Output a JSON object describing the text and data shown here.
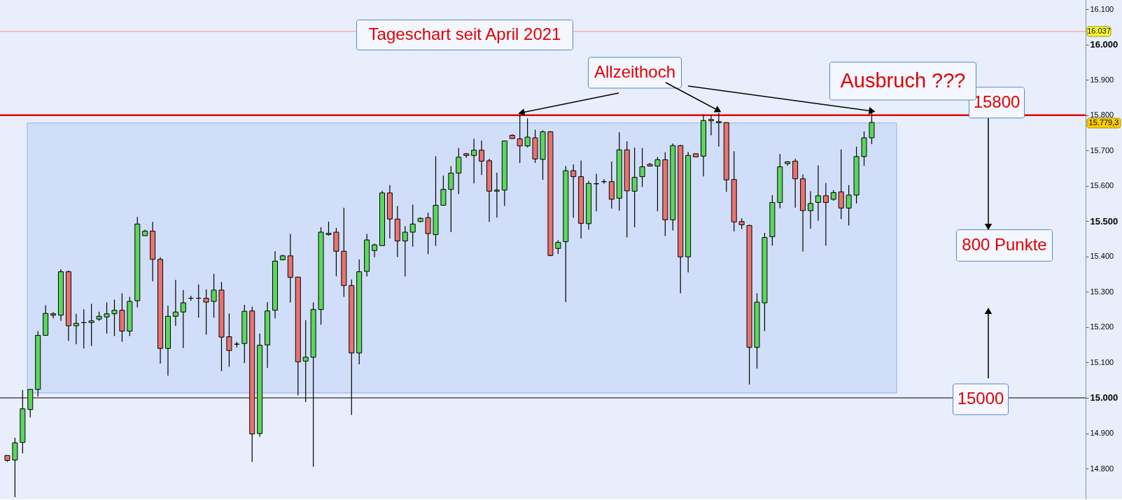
{
  "chart_data": {
    "type": "candlestick",
    "title": "Tageschart seit April 2021",
    "categories": [
      null,
      null,
      null,
      null,
      null,
      null,
      null,
      null,
      null,
      null,
      null,
      null,
      null,
      null,
      null,
      null,
      null,
      null,
      null,
      null,
      null,
      null,
      null,
      null,
      null,
      null,
      null,
      null,
      null,
      null,
      null,
      null,
      null,
      null,
      null,
      null,
      null,
      null,
      null,
      null,
      null,
      null,
      null,
      null,
      null,
      null,
      null,
      null,
      null,
      null,
      null,
      null,
      null,
      null,
      null,
      null,
      null,
      null,
      null,
      null,
      null,
      null,
      null,
      null,
      null,
      null,
      null,
      null,
      null,
      null,
      null,
      null,
      null,
      null,
      null,
      null,
      null,
      null,
      null,
      null,
      null,
      null,
      null,
      null,
      null,
      null,
      null,
      null,
      null,
      null,
      null,
      null,
      null,
      null,
      null,
      null,
      null,
      null,
      null,
      null,
      null,
      null,
      null,
      null,
      null,
      null,
      null,
      null,
      null,
      null,
      null,
      null,
      null,
      null,
      null,
      null,
      null,
      null,
      null,
      null,
      null,
      null,
      null,
      null,
      null,
      null,
      null,
      null,
      null,
      null,
      null,
      null,
      null,
      null,
      null,
      null,
      null,
      null,
      null,
      null,
      null
    ],
    "ohlc": [
      [
        14837,
        14838,
        14819,
        14823
      ],
      [
        14824,
        14887,
        14719,
        14873
      ],
      [
        14874,
        15022,
        14843,
        14969
      ],
      [
        14967,
        15024,
        14945,
        15024
      ],
      [
        15024,
        15189,
        15004,
        15177
      ],
      [
        15177,
        15262,
        15177,
        15239
      ],
      [
        15238,
        15243,
        15225,
        15234
      ],
      [
        15234,
        15364,
        15218,
        15357
      ],
      [
        15357,
        15360,
        15161,
        15204
      ],
      [
        15204,
        15238,
        15152,
        15211
      ],
      [
        15213,
        15251,
        15140,
        15213
      ],
      [
        15213,
        15266,
        15147,
        15218
      ],
      [
        15223,
        15244,
        15218,
        15231
      ],
      [
        15229,
        15270,
        15182,
        15238
      ],
      [
        15238,
        15278,
        15175,
        15248
      ],
      [
        15248,
        15296,
        15159,
        15189
      ],
      [
        15189,
        15286,
        15175,
        15273
      ],
      [
        15275,
        15512,
        15256,
        15492
      ],
      [
        15459,
        15476,
        15459,
        15472
      ],
      [
        15472,
        15498,
        15330,
        15392
      ],
      [
        15392,
        15398,
        15097,
        15140
      ],
      [
        15140,
        15261,
        15063,
        15231
      ],
      [
        15231,
        15334,
        15204,
        15243
      ],
      [
        15243,
        15305,
        15141,
        15269
      ],
      [
        15282,
        15289,
        15275,
        15282
      ],
      [
        15282,
        15321,
        15227,
        15282
      ],
      [
        15282,
        15307,
        15179,
        15271
      ],
      [
        15273,
        15351,
        15227,
        15305
      ],
      [
        15305,
        15328,
        15076,
        15172
      ],
      [
        15173,
        15239,
        15088,
        15134
      ],
      [
        15152,
        15159,
        15143,
        15152
      ],
      [
        15154,
        15263,
        15099,
        15245
      ],
      [
        15246,
        15258,
        14819,
        14898
      ],
      [
        14899,
        15182,
        14890,
        15149
      ],
      [
        15150,
        15271,
        15085,
        15246
      ],
      [
        15248,
        15415,
        15225,
        15387
      ],
      [
        15391,
        15405,
        15389,
        15402
      ],
      [
        15402,
        15464,
        15270,
        15341
      ],
      [
        15342,
        15342,
        15007,
        15102
      ],
      [
        15104,
        15220,
        14988,
        15115
      ],
      [
        15115,
        15270,
        14805,
        15250
      ],
      [
        15250,
        15483,
        15207,
        15469
      ],
      [
        15462,
        15499,
        15459,
        15466
      ],
      [
        15469,
        15481,
        15344,
        15415
      ],
      [
        15415,
        15538,
        15286,
        15318
      ],
      [
        15318,
        15335,
        14952,
        15127
      ],
      [
        15127,
        15392,
        15095,
        15357
      ],
      [
        15358,
        15464,
        15344,
        15447
      ],
      [
        15417,
        15437,
        15398,
        15433
      ],
      [
        15431,
        15586,
        15431,
        15580
      ],
      [
        15580,
        15602,
        15451,
        15506
      ],
      [
        15506,
        15543,
        15398,
        15444
      ],
      [
        15444,
        15486,
        15344,
        15469
      ],
      [
        15469,
        15547,
        15428,
        15492
      ],
      [
        15499,
        15511,
        15497,
        15508
      ],
      [
        15510,
        15524,
        15407,
        15465
      ],
      [
        15462,
        15684,
        15430,
        15545
      ],
      [
        15545,
        15629,
        15544,
        15590
      ],
      [
        15590,
        15656,
        15469,
        15636
      ],
      [
        15636,
        15707,
        15577,
        15681
      ],
      [
        15691,
        15693,
        15679,
        15686
      ],
      [
        15686,
        15733,
        15607,
        15701
      ],
      [
        15701,
        15728,
        15631,
        15670
      ],
      [
        15671,
        15677,
        15498,
        15585
      ],
      [
        15585,
        15637,
        15510,
        15588
      ],
      [
        15588,
        15727,
        15543,
        15727
      ],
      [
        15743,
        15746,
        15734,
        15734
      ],
      [
        15733,
        15802,
        15665,
        15713
      ],
      [
        15713,
        15791,
        15709,
        15738
      ],
      [
        15736,
        15759,
        15665,
        15676
      ],
      [
        15675,
        15757,
        15617,
        15753
      ],
      [
        15753,
        15755,
        15401,
        15403
      ],
      [
        15423,
        15446,
        15407,
        15440
      ],
      [
        15442,
        15656,
        15271,
        15643
      ],
      [
        15643,
        15661,
        15510,
        15626
      ],
      [
        15626,
        15672,
        15451,
        15494
      ],
      [
        15493,
        15614,
        15476,
        15607
      ],
      [
        15606,
        15634,
        15528,
        15606
      ],
      [
        15612,
        15619,
        15606,
        15612
      ],
      [
        15612,
        15669,
        15536,
        15562
      ],
      [
        15565,
        15752,
        15530,
        15702
      ],
      [
        15702,
        15726,
        15454,
        15586
      ],
      [
        15585,
        15708,
        15483,
        15624
      ],
      [
        15626,
        15707,
        15597,
        15654
      ],
      [
        15661,
        15665,
        15656,
        15656
      ],
      [
        15656,
        15682,
        15528,
        15674
      ],
      [
        15674,
        15695,
        15458,
        15504
      ],
      [
        15504,
        15720,
        15474,
        15714
      ],
      [
        15714,
        15716,
        15296,
        15399
      ],
      [
        15399,
        15696,
        15355,
        15686
      ],
      [
        15691,
        15691,
        15682,
        15682
      ],
      [
        15684,
        15802,
        15627,
        15785
      ],
      [
        15788,
        15800,
        15743,
        15784
      ],
      [
        15782,
        15807,
        15711,
        15779
      ],
      [
        15779,
        15780,
        15583,
        15617
      ],
      [
        15618,
        15698,
        15471,
        15498
      ],
      [
        15499,
        15508,
        15478,
        15490
      ],
      [
        15488,
        15490,
        15038,
        15143
      ],
      [
        15143,
        15296,
        15083,
        15271
      ],
      [
        15269,
        15467,
        15189,
        15454
      ],
      [
        15456,
        15574,
        15431,
        15553
      ],
      [
        15553,
        15690,
        15537,
        15654
      ],
      [
        15663,
        15670,
        15657,
        15668
      ],
      [
        15670,
        15677,
        15538,
        15620
      ],
      [
        15620,
        15632,
        15414,
        15530
      ],
      [
        15530,
        15585,
        15479,
        15550
      ],
      [
        15553,
        15658,
        15501,
        15572
      ],
      [
        15572,
        15608,
        15431,
        15553
      ],
      [
        15562,
        15588,
        15558,
        15581
      ],
      [
        15583,
        15703,
        15506,
        15537
      ],
      [
        15537,
        15602,
        15488,
        15574
      ],
      [
        15574,
        15711,
        15550,
        15683
      ],
      [
        15683,
        15754,
        15657,
        15736
      ],
      [
        15736,
        15807,
        15718,
        15779.3
      ],
      null,
      null,
      null,
      null,
      null,
      null,
      null,
      null,
      null,
      null,
      null,
      null,
      null,
      null,
      null,
      null,
      null,
      null,
      null,
      null,
      null,
      null,
      null,
      null,
      null,
      null,
      null
    ],
    "colors": [
      "#e8736e",
      "#5cd65c",
      "#5cd65c",
      "#5cd65c",
      "#5cd65c",
      "#5cd65c",
      "#e8736e",
      "#5cd65c",
      "#e8736e",
      "#5cd65c",
      "#000000",
      "#5cd65c",
      "#5cd65c",
      "#5cd65c",
      "#5cd65c",
      "#e8736e",
      "#5cd65c",
      "#5cd65c",
      "#5cd65c",
      "#e8736e",
      "#e8736e",
      "#5cd65c",
      "#5cd65c",
      "#5cd65c",
      "#000000",
      "#000000",
      "#e8736e",
      "#5cd65c",
      "#e8736e",
      "#e8736e",
      "#000000",
      "#5cd65c",
      "#e8736e",
      "#5cd65c",
      "#5cd65c",
      "#5cd65c",
      "#5cd65c",
      "#e8736e",
      "#e8736e",
      "#5cd65c",
      "#5cd65c",
      "#5cd65c",
      "#5cd65c",
      "#e8736e",
      "#e8736e",
      "#e8736e",
      "#5cd65c",
      "#5cd65c",
      "#5cd65c",
      "#5cd65c",
      "#e8736e",
      "#e8736e",
      "#5cd65c",
      "#5cd65c",
      "#5cd65c",
      "#e8736e",
      "#5cd65c",
      "#5cd65c",
      "#5cd65c",
      "#5cd65c",
      "#e8736e",
      "#5cd65c",
      "#e8736e",
      "#e8736e",
      "#5cd65c",
      "#5cd65c",
      "#e8736e",
      "#e8736e",
      "#5cd65c",
      "#e8736e",
      "#5cd65c",
      "#e8736e",
      "#5cd65c",
      "#5cd65c",
      "#e8736e",
      "#e8736e",
      "#5cd65c",
      "#000000",
      "#000000",
      "#e8736e",
      "#5cd65c",
      "#e8736e",
      "#5cd65c",
      "#5cd65c",
      "#e8736e",
      "#5cd65c",
      "#e8736e",
      "#5cd65c",
      "#e8736e",
      "#5cd65c",
      "#e8736e",
      "#5cd65c",
      "#e8736e",
      "#e8736e",
      "#e8736e",
      "#e8736e",
      "#e8736e",
      "#e8736e",
      "#5cd65c",
      "#5cd65c",
      "#5cd65c",
      "#5cd65c",
      "#5cd65c",
      "#e8736e",
      "#e8736e",
      "#5cd65c",
      "#5cd65c",
      "#e8736e",
      "#5cd65c",
      "#e8736e",
      "#5cd65c",
      "#5cd65c",
      "#5cd65c",
      "#5cd65c",
      null,
      null,
      null,
      null,
      null,
      null,
      null,
      null,
      null,
      null,
      null,
      null,
      null,
      null,
      null,
      null,
      null,
      null,
      null,
      null,
      null,
      null,
      null,
      null,
      null,
      null,
      null
    ],
    "ylim": [
      14713,
      16126
    ],
    "yticks": [
      {
        "value": 14800,
        "label": "14.800"
      },
      {
        "value": 14900,
        "label": "14.900"
      },
      {
        "value": 15000,
        "label": "15.000"
      },
      {
        "value": 15100,
        "label": "15.100"
      },
      {
        "value": 15200,
        "label": "15.200"
      },
      {
        "value": 15300,
        "label": "15.300"
      },
      {
        "value": 15400,
        "label": "15.400"
      },
      {
        "value": 15500,
        "label": "15.500"
      },
      {
        "value": 15600,
        "label": "15.600"
      },
      {
        "value": 15700,
        "label": "15.700"
      },
      {
        "value": 15800,
        "label": "15.800"
      },
      {
        "value": 15900,
        "label": "15.900"
      },
      {
        "value": 16000,
        "label": "16.000"
      },
      {
        "value": 16100,
        "label": "16.100"
      }
    ],
    "tick_labels": "y",
    "ref_lines": [
      {
        "axis": "y",
        "value": 16037,
        "label": "16.037",
        "color": "#ff8c8c"
      },
      {
        "axis": "y",
        "value": 15800,
        "label": "15800",
        "color": "#e00000"
      },
      {
        "axis": "y",
        "value": 15000,
        "label": "15000",
        "color": "#000000"
      }
    ],
    "bands": [
      {
        "axis": "y",
        "from": 15014,
        "to": 15778,
        "color": "#c9d9f9"
      }
    ],
    "annotations": [
      "Allzeithoch",
      "Ausbruch  ???",
      "800 Punkte",
      "15.779,3"
    ]
  }
}
